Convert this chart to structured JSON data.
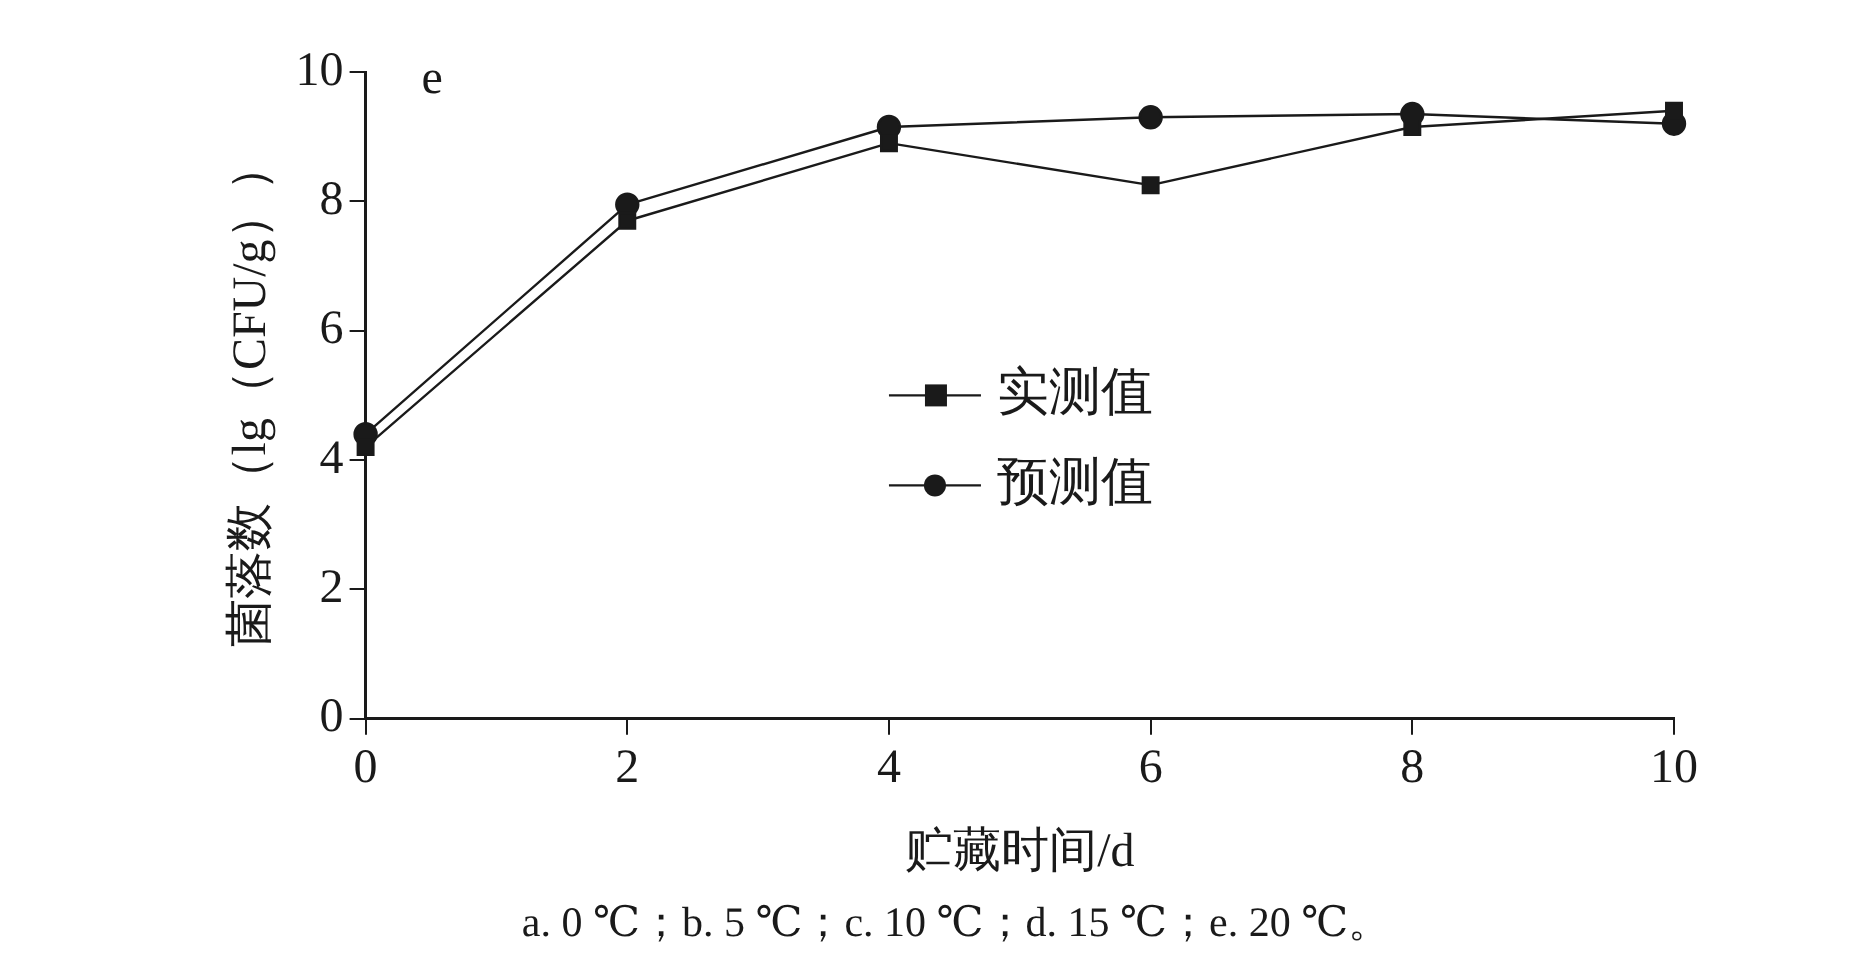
{
  "chart_data": {
    "type": "line",
    "xlabel": "贮藏时间/d",
    "ylabel": "菌落数（lg（CFU/g））",
    "x": [
      0,
      2,
      4,
      6,
      8,
      10
    ],
    "series": [
      {
        "name": "实测值",
        "color": "#1a1a1a",
        "marker": "square",
        "values": [
          4.2,
          7.7,
          8.9,
          8.25,
          9.15,
          9.4
        ]
      },
      {
        "name": "预测值",
        "color": "#1a1a1a",
        "marker": "circle",
        "values": [
          4.4,
          7.95,
          9.15,
          9.3,
          9.35,
          9.2
        ]
      }
    ],
    "xlim": [
      0,
      10
    ],
    "xticks": [
      0,
      2,
      4,
      6,
      8,
      10
    ],
    "ylim": [
      0,
      10
    ],
    "yticks": [
      0,
      2,
      4,
      6,
      8,
      10
    ],
    "grid": false,
    "legend": "center",
    "line_style": "solid",
    "annotations": [
      {
        "text": "e"
      },
      {
        "text": "a. 0 ℃；b. 5 ℃；c. 10 ℃；d. 15 ℃；e. 20 ℃。"
      }
    ]
  }
}
